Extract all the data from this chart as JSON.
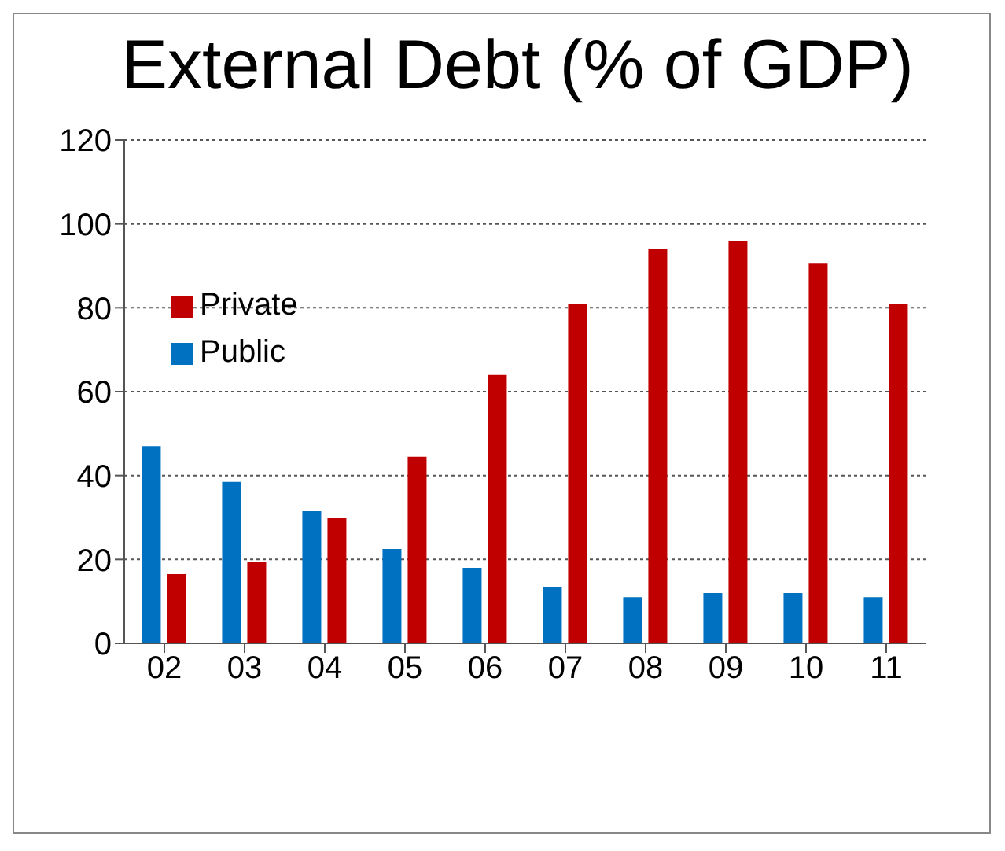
{
  "chart_data": {
    "type": "bar",
    "title": "External Debt (% of GDP)",
    "categories": [
      "02",
      "03",
      "04",
      "05",
      "06",
      "07",
      "08",
      "09",
      "10",
      "11"
    ],
    "series": [
      {
        "name": "Public",
        "color": "#0070c0",
        "values": [
          47,
          38.5,
          31.5,
          22.5,
          18,
          13.5,
          11,
          12,
          12,
          11
        ]
      },
      {
        "name": "Private",
        "color": "#c00000",
        "values": [
          16.5,
          19.5,
          30,
          44.5,
          64,
          81,
          94,
          96,
          90.5,
          81
        ]
      }
    ],
    "ylim": [
      0,
      120
    ],
    "yticks": [
      0,
      20,
      40,
      60,
      80,
      100,
      120
    ],
    "grid": "y",
    "legend": "top left"
  }
}
